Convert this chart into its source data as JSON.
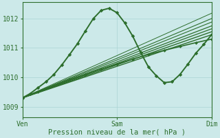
{
  "xlabel": "Pression niveau de la mer( hPa )",
  "background_color": "#cce9e9",
  "grid_color": "#aad4d4",
  "line_color": "#2d6e2d",
  "text_color": "#2d6e2d",
  "ylim": [
    1008.65,
    1012.55
  ],
  "xlim": [
    0,
    48
  ],
  "yticks": [
    1009,
    1010,
    1011,
    1012
  ],
  "xtick_positions": [
    0,
    24,
    48
  ],
  "xtick_labels": [
    "Ven",
    "Sam",
    "Dim"
  ],
  "peaked_series": {
    "x": [
      0,
      2,
      4,
      6,
      8,
      10,
      12,
      14,
      16,
      18,
      20,
      22,
      24,
      26,
      28,
      30,
      32,
      34,
      36,
      38,
      40,
      42,
      44,
      46,
      48
    ],
    "y": [
      1009.3,
      1009.45,
      1009.65,
      1009.85,
      1010.1,
      1010.42,
      1010.78,
      1011.15,
      1011.58,
      1012.0,
      1012.28,
      1012.35,
      1012.2,
      1011.85,
      1011.4,
      1010.85,
      1010.35,
      1010.05,
      1009.82,
      1009.85,
      1010.1,
      1010.45,
      1010.82,
      1011.12,
      1011.45
    ],
    "lw": 1.4
  },
  "straight_lines": [
    {
      "x0": 0,
      "y0": 1009.3,
      "x1": 48,
      "y1": 1011.45,
      "lw": 1.0
    },
    {
      "x0": 0,
      "y0": 1009.3,
      "x1": 48,
      "y1": 1011.55,
      "lw": 1.0
    },
    {
      "x0": 0,
      "y0": 1009.3,
      "x1": 48,
      "y1": 1011.65,
      "lw": 0.9
    },
    {
      "x0": 0,
      "y0": 1009.3,
      "x1": 48,
      "y1": 1011.75,
      "lw": 0.9
    },
    {
      "x0": 0,
      "y0": 1009.3,
      "x1": 48,
      "y1": 1011.88,
      "lw": 0.8
    },
    {
      "x0": 0,
      "y0": 1009.3,
      "x1": 48,
      "y1": 1012.0,
      "lw": 0.8
    },
    {
      "x0": 0,
      "y0": 1009.3,
      "x1": 48,
      "y1": 1012.18,
      "lw": 0.7
    }
  ],
  "marked_straight": {
    "x": [
      0,
      4,
      8,
      12,
      16,
      20,
      24,
      28,
      32,
      36,
      40,
      44,
      48
    ],
    "y": [
      1009.3,
      1009.52,
      1009.72,
      1009.92,
      1010.1,
      1010.28,
      1010.45,
      1010.62,
      1010.78,
      1010.92,
      1011.05,
      1011.18,
      1011.3
    ],
    "lw": 1.2
  }
}
